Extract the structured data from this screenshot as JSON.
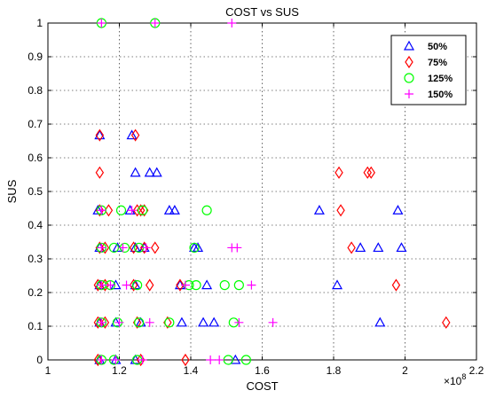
{
  "chart_data": {
    "type": "scatter",
    "title": "COST vs SUS",
    "xlabel": "COST",
    "ylabel": "SUS",
    "x_multiplier": "×10",
    "x_exponent": "8",
    "xlim": [
      1.0,
      2.2
    ],
    "ylim": [
      0,
      1
    ],
    "xticks": [
      "1",
      "1.2",
      "1.4",
      "1.6",
      "1.8",
      "2",
      "2.2"
    ],
    "yticks": [
      "0",
      "0.1",
      "0.2",
      "0.3",
      "0.4",
      "0.5",
      "0.6",
      "0.7",
      "0.8",
      "0.9",
      "1"
    ],
    "grid": true,
    "legend_position": "top-right",
    "series": [
      {
        "name": "50%",
        "marker": "triangle",
        "color": "#0000ff",
        "points": [
          [
            1.145,
            0.667
          ],
          [
            1.235,
            0.667
          ],
          [
            1.245,
            0.556
          ],
          [
            1.285,
            0.556
          ],
          [
            1.305,
            0.556
          ],
          [
            1.14,
            0.444
          ],
          [
            1.23,
            0.444
          ],
          [
            1.34,
            0.444
          ],
          [
            1.355,
            0.444
          ],
          [
            1.76,
            0.444
          ],
          [
            1.98,
            0.444
          ],
          [
            1.145,
            0.333
          ],
          [
            1.195,
            0.333
          ],
          [
            1.245,
            0.333
          ],
          [
            1.27,
            0.333
          ],
          [
            1.41,
            0.333
          ],
          [
            1.42,
            0.333
          ],
          [
            1.875,
            0.333
          ],
          [
            1.925,
            0.333
          ],
          [
            1.99,
            0.333
          ],
          [
            1.145,
            0.222
          ],
          [
            1.19,
            0.222
          ],
          [
            1.245,
            0.222
          ],
          [
            1.37,
            0.222
          ],
          [
            1.445,
            0.222
          ],
          [
            1.81,
            0.222
          ],
          [
            1.145,
            0.111
          ],
          [
            1.19,
            0.111
          ],
          [
            1.26,
            0.111
          ],
          [
            1.375,
            0.111
          ],
          [
            1.435,
            0.111
          ],
          [
            1.465,
            0.111
          ],
          [
            1.93,
            0.111
          ],
          [
            1.145,
            0
          ],
          [
            1.19,
            0
          ],
          [
            1.245,
            0
          ],
          [
            1.525,
            0
          ]
        ]
      },
      {
        "name": "75%",
        "marker": "diamond",
        "color": "#ff0000",
        "points": [
          [
            1.145,
            0.667
          ],
          [
            1.245,
            0.667
          ],
          [
            1.145,
            0.556
          ],
          [
            1.815,
            0.556
          ],
          [
            1.895,
            0.556
          ],
          [
            1.905,
            0.556
          ],
          [
            1.145,
            0.444
          ],
          [
            1.17,
            0.444
          ],
          [
            1.25,
            0.444
          ],
          [
            1.26,
            0.444
          ],
          [
            1.27,
            0.444
          ],
          [
            1.82,
            0.444
          ],
          [
            1.145,
            0.333
          ],
          [
            1.16,
            0.333
          ],
          [
            1.24,
            0.333
          ],
          [
            1.27,
            0.333
          ],
          [
            1.3,
            0.333
          ],
          [
            1.85,
            0.333
          ],
          [
            1.14,
            0.222
          ],
          [
            1.16,
            0.222
          ],
          [
            1.24,
            0.222
          ],
          [
            1.285,
            0.222
          ],
          [
            1.37,
            0.222
          ],
          [
            1.975,
            0.222
          ],
          [
            1.14,
            0.111
          ],
          [
            1.16,
            0.111
          ],
          [
            1.25,
            0.111
          ],
          [
            1.335,
            0.111
          ],
          [
            2.115,
            0.111
          ],
          [
            1.14,
            0
          ],
          [
            1.26,
            0
          ],
          [
            1.385,
            0
          ]
        ]
      },
      {
        "name": "125%",
        "marker": "circle",
        "color": "#00ff00",
        "points": [
          [
            1.15,
            1.0
          ],
          [
            1.3,
            1.0
          ],
          [
            1.15,
            0.444
          ],
          [
            1.205,
            0.444
          ],
          [
            1.265,
            0.444
          ],
          [
            1.445,
            0.444
          ],
          [
            1.15,
            0.333
          ],
          [
            1.185,
            0.333
          ],
          [
            1.215,
            0.333
          ],
          [
            1.255,
            0.333
          ],
          [
            1.41,
            0.333
          ],
          [
            1.15,
            0.222
          ],
          [
            1.175,
            0.222
          ],
          [
            1.25,
            0.222
          ],
          [
            1.395,
            0.222
          ],
          [
            1.415,
            0.222
          ],
          [
            1.495,
            0.222
          ],
          [
            1.535,
            0.222
          ],
          [
            1.15,
            0.111
          ],
          [
            1.195,
            0.111
          ],
          [
            1.255,
            0.111
          ],
          [
            1.34,
            0.111
          ],
          [
            1.52,
            0.111
          ],
          [
            1.15,
            0
          ],
          [
            1.185,
            0
          ],
          [
            1.25,
            0
          ],
          [
            1.505,
            0
          ],
          [
            1.555,
            0
          ]
        ]
      },
      {
        "name": "150%",
        "marker": "plus",
        "color": "#ff00ff",
        "points": [
          [
            1.15,
            1.0
          ],
          [
            1.3,
            1.0
          ],
          [
            1.515,
            1.0
          ],
          [
            1.15,
            0.444
          ],
          [
            1.235,
            0.444
          ],
          [
            1.15,
            0.333
          ],
          [
            1.21,
            0.333
          ],
          [
            1.275,
            0.333
          ],
          [
            1.515,
            0.333
          ],
          [
            1.53,
            0.333
          ],
          [
            1.15,
            0.222
          ],
          [
            1.175,
            0.222
          ],
          [
            1.22,
            0.222
          ],
          [
            1.385,
            0.222
          ],
          [
            1.57,
            0.222
          ],
          [
            1.15,
            0.111
          ],
          [
            1.2,
            0.111
          ],
          [
            1.285,
            0.111
          ],
          [
            1.535,
            0.111
          ],
          [
            1.63,
            0.111
          ],
          [
            1.15,
            0
          ],
          [
            1.19,
            0
          ],
          [
            1.265,
            0
          ],
          [
            1.455,
            0
          ],
          [
            1.48,
            0
          ]
        ]
      }
    ]
  }
}
